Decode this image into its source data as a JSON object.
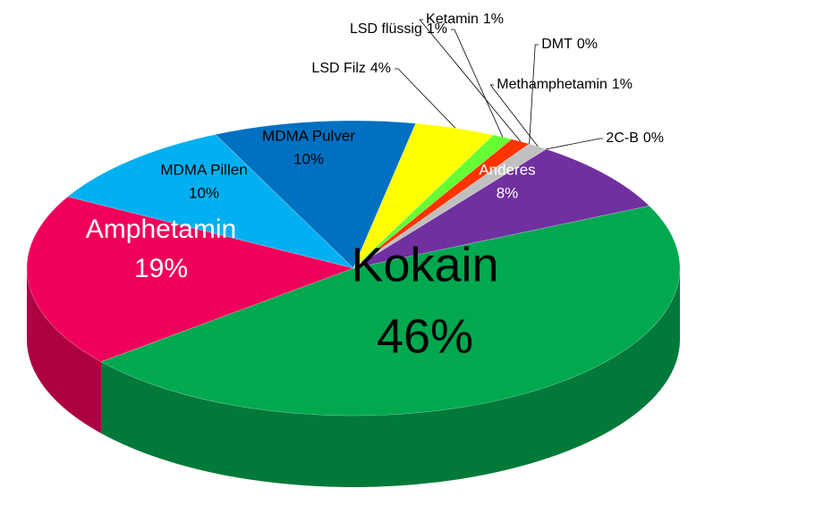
{
  "chart_data": {
    "type": "pie",
    "categories": [
      "Kokain",
      "Amphetamin",
      "MDMA Pillen",
      "MDMA Pulver",
      "LSD Filz",
      "LSD flüssig",
      "Ketamin",
      "DMT",
      "Methamphetamin",
      "2C-B",
      "Anderes"
    ],
    "values": [
      46,
      19,
      10,
      10,
      4,
      1,
      1,
      0,
      1,
      0,
      8
    ],
    "value_labels": [
      "46%",
      "19%",
      "10%",
      "10%",
      "4%",
      "1%",
      "1%",
      "0%",
      "1%",
      "0%",
      "8%"
    ],
    "colors": [
      "#00a84f",
      "#f0005a",
      "#00b0f0",
      "#0070c0",
      "#ffff00",
      "#66ff33",
      "#ff3300",
      "#ff9966",
      "#c0c0c0",
      "#cccc99",
      "#7030a0"
    ]
  }
}
